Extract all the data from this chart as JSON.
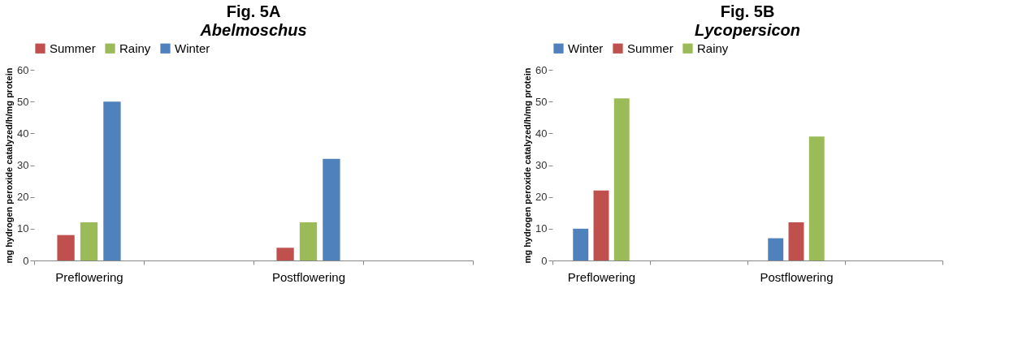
{
  "chart_data": [
    {
      "type": "bar",
      "title": "Fig. 5A",
      "subtitle": "Abelmoschus",
      "ylabel": "mg hydrogen peroxide catalyzed/h/mg protein",
      "categories": [
        "Preflowering",
        null,
        "Postflowering",
        null
      ],
      "series": [
        {
          "name": "Summer",
          "color": "#c0504d",
          "values": [
            8,
            null,
            4,
            null
          ]
        },
        {
          "name": "Rainy",
          "color": "#9bbb59",
          "values": [
            12,
            null,
            12,
            null
          ]
        },
        {
          "name": "Winter",
          "color": "#4f81bd",
          "values": [
            50,
            null,
            32,
            null
          ]
        }
      ],
      "ylim": [
        0,
        60
      ],
      "yticks": [
        0,
        10,
        20,
        30,
        40,
        50,
        60
      ],
      "grid": false,
      "legend": "top"
    },
    {
      "type": "bar",
      "title": "Fig. 5B",
      "subtitle": "Lycopersicon",
      "ylabel": "mg hydrogen peroxide catalyzed/h/mg protein",
      "categories": [
        "Preflowering",
        null,
        "Postflowering",
        null
      ],
      "series": [
        {
          "name": "Winter",
          "color": "#4f81bd",
          "values": [
            10,
            null,
            7,
            null
          ]
        },
        {
          "name": "Summer",
          "color": "#c0504d",
          "values": [
            22,
            null,
            12,
            null
          ]
        },
        {
          "name": "Rainy",
          "color": "#9bbb59",
          "values": [
            51,
            null,
            39,
            null
          ]
        }
      ],
      "ylim": [
        0,
        60
      ],
      "yticks": [
        0,
        10,
        20,
        30,
        40,
        50,
        60
      ],
      "grid": false,
      "legend": "top"
    }
  ]
}
